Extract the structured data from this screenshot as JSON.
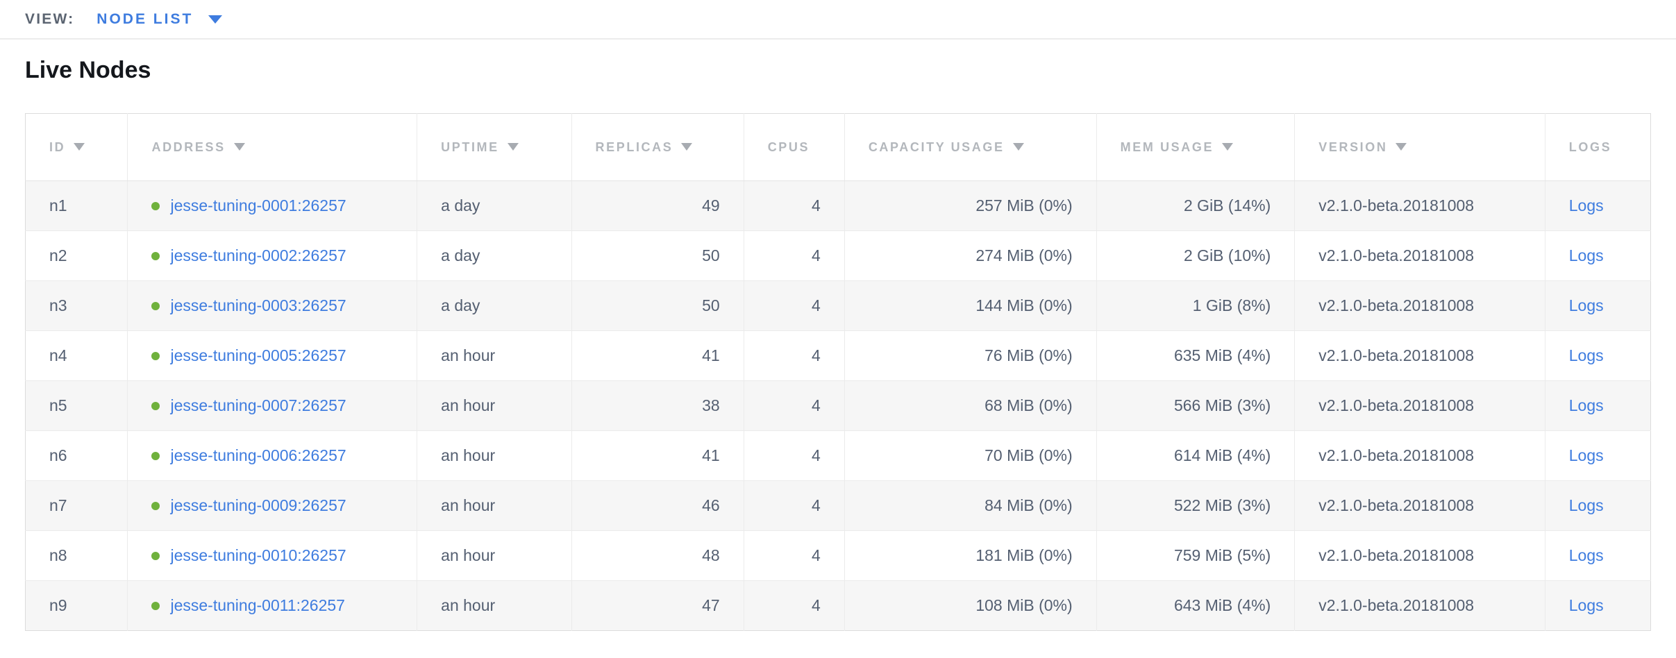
{
  "view_bar": {
    "label": "VIEW:",
    "selected_view": "NODE LIST"
  },
  "page": {
    "title": "Live Nodes"
  },
  "colors": {
    "accent_blue": "#3e7cdf",
    "live_green": "#6fb13c",
    "header_gray": "#b3b7bc",
    "body_text": "#545f71",
    "row_alt_bg": "#f6f6f6"
  },
  "table": {
    "columns": [
      {
        "key": "id",
        "label": "ID",
        "sortable": true,
        "align": "left",
        "width": "6.3%"
      },
      {
        "key": "address",
        "label": "ADDRESS",
        "sortable": true,
        "align": "left",
        "width": "17.8%"
      },
      {
        "key": "uptime",
        "label": "UPTIME",
        "sortable": true,
        "align": "left",
        "width": "9.5%"
      },
      {
        "key": "replicas",
        "label": "REPLICAS",
        "sortable": true,
        "align": "right",
        "width": "10.6%"
      },
      {
        "key": "cpus",
        "label": "CPUS",
        "sortable": false,
        "align": "right",
        "width": "6.2%"
      },
      {
        "key": "capacity",
        "label": "CAPACITY USAGE",
        "sortable": true,
        "align": "right",
        "width": "15.5%"
      },
      {
        "key": "mem",
        "label": "MEM USAGE",
        "sortable": true,
        "align": "right",
        "width": "12.2%"
      },
      {
        "key": "version",
        "label": "VERSION",
        "sortable": true,
        "align": "left",
        "width": "15.4%"
      },
      {
        "key": "logs",
        "label": "LOGS",
        "sortable": false,
        "align": "left",
        "width": "6.5%"
      }
    ],
    "rows": [
      {
        "id": "n1",
        "address": "jesse-tuning-0001:26257",
        "uptime": "a day",
        "replicas": "49",
        "cpus": "4",
        "capacity": "257 MiB (0%)",
        "mem": "2 GiB (14%)",
        "version": "v2.1.0-beta.20181008",
        "logs": "Logs"
      },
      {
        "id": "n2",
        "address": "jesse-tuning-0002:26257",
        "uptime": "a day",
        "replicas": "50",
        "cpus": "4",
        "capacity": "274 MiB (0%)",
        "mem": "2 GiB (10%)",
        "version": "v2.1.0-beta.20181008",
        "logs": "Logs"
      },
      {
        "id": "n3",
        "address": "jesse-tuning-0003:26257",
        "uptime": "a day",
        "replicas": "50",
        "cpus": "4",
        "capacity": "144 MiB (0%)",
        "mem": "1 GiB (8%)",
        "version": "v2.1.0-beta.20181008",
        "logs": "Logs"
      },
      {
        "id": "n4",
        "address": "jesse-tuning-0005:26257",
        "uptime": "an hour",
        "replicas": "41",
        "cpus": "4",
        "capacity": "76 MiB (0%)",
        "mem": "635 MiB (4%)",
        "version": "v2.1.0-beta.20181008",
        "logs": "Logs"
      },
      {
        "id": "n5",
        "address": "jesse-tuning-0007:26257",
        "uptime": "an hour",
        "replicas": "38",
        "cpus": "4",
        "capacity": "68 MiB (0%)",
        "mem": "566 MiB (3%)",
        "version": "v2.1.0-beta.20181008",
        "logs": "Logs"
      },
      {
        "id": "n6",
        "address": "jesse-tuning-0006:26257",
        "uptime": "an hour",
        "replicas": "41",
        "cpus": "4",
        "capacity": "70 MiB (0%)",
        "mem": "614 MiB (4%)",
        "version": "v2.1.0-beta.20181008",
        "logs": "Logs"
      },
      {
        "id": "n7",
        "address": "jesse-tuning-0009:26257",
        "uptime": "an hour",
        "replicas": "46",
        "cpus": "4",
        "capacity": "84 MiB (0%)",
        "mem": "522 MiB (3%)",
        "version": "v2.1.0-beta.20181008",
        "logs": "Logs"
      },
      {
        "id": "n8",
        "address": "jesse-tuning-0010:26257",
        "uptime": "an hour",
        "replicas": "48",
        "cpus": "4",
        "capacity": "181 MiB (0%)",
        "mem": "759 MiB (5%)",
        "version": "v2.1.0-beta.20181008",
        "logs": "Logs"
      },
      {
        "id": "n9",
        "address": "jesse-tuning-0011:26257",
        "uptime": "an hour",
        "replicas": "47",
        "cpus": "4",
        "capacity": "108 MiB (0%)",
        "mem": "643 MiB (4%)",
        "version": "v2.1.0-beta.20181008",
        "logs": "Logs"
      }
    ]
  }
}
